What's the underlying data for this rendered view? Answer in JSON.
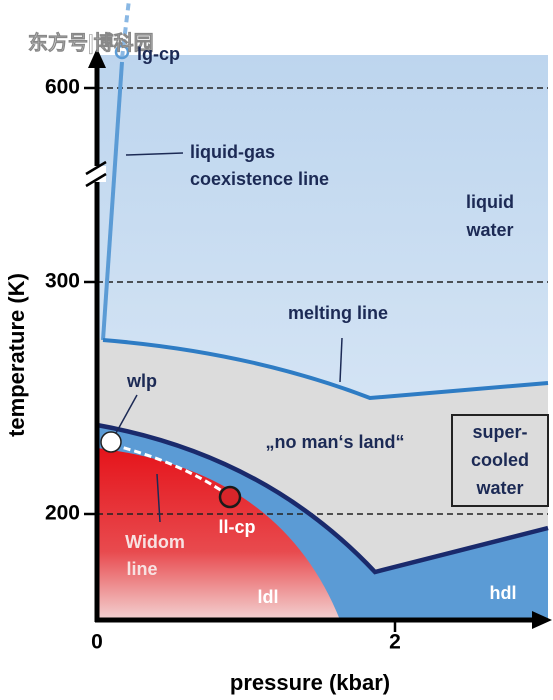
{
  "watermark": "东方号|博科园",
  "axes": {
    "y_label": "temperature (K)",
    "x_label": "pressure (kbar)",
    "y_ticks": [
      "600",
      "300",
      "200"
    ],
    "x_ticks": [
      "0",
      "2"
    ]
  },
  "labels": {
    "lg_cp": "lg-cp",
    "liquid_gas": [
      "liquid-gas",
      "coexistence line"
    ],
    "liquid_water": [
      "liquid",
      "water"
    ],
    "melting_line": "melting line",
    "wlp": "wlp",
    "no_mans_land": "„no man‘s land“",
    "supercooled": [
      "super-",
      "cooled",
      "water"
    ],
    "ll_cp": "ll-cp",
    "widom": [
      "Widom",
      "line"
    ],
    "ldl": "ldl",
    "hdl": "hdl"
  }
}
